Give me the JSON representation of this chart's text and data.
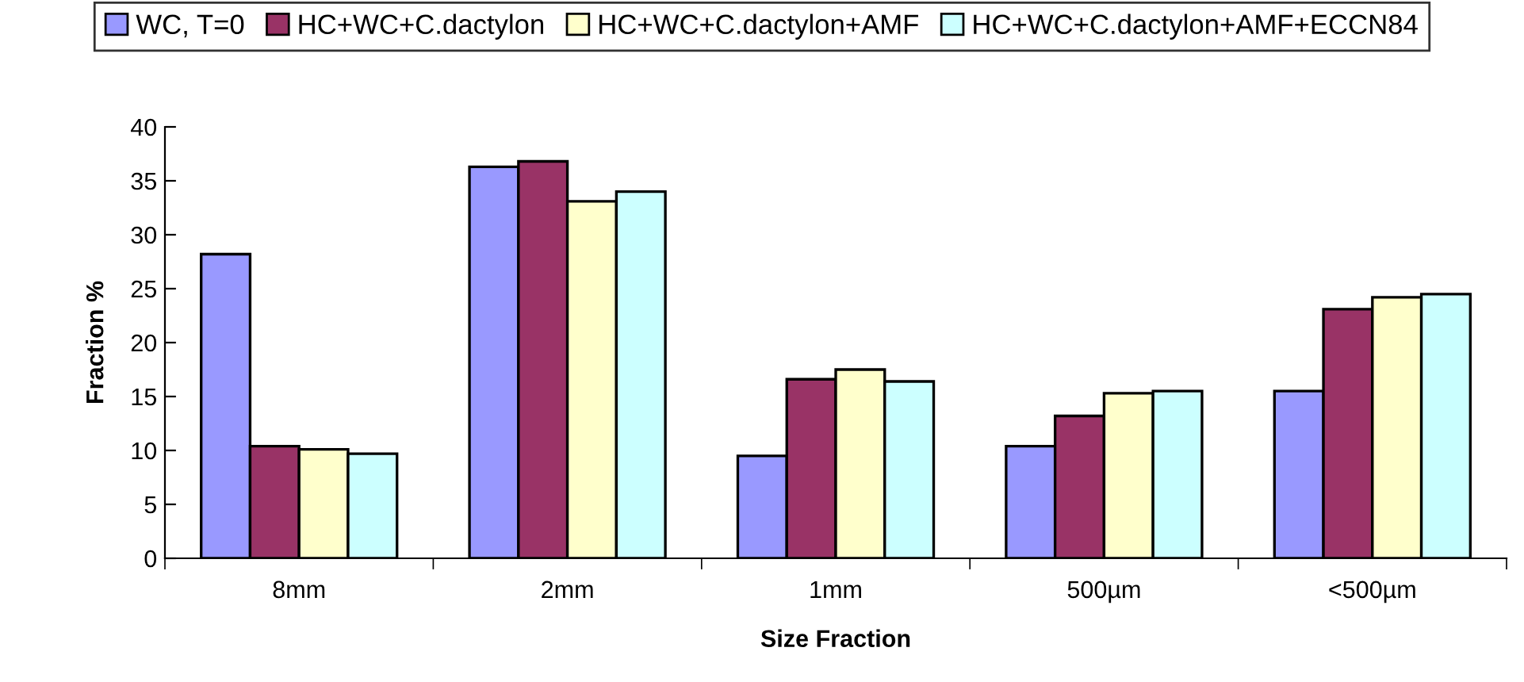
{
  "chart_data": {
    "type": "bar",
    "xlabel": "Size Fraction",
    "ylabel": "Fraction %",
    "categories": [
      "8mm",
      "2mm",
      "1mm",
      "500µm",
      "<500µm"
    ],
    "series": [
      {
        "name": "WC, T=0",
        "color": "#9999ff",
        "values": [
          28.2,
          36.3,
          9.5,
          10.4,
          15.5
        ]
      },
      {
        "name": "HC+WC+C.dactylon",
        "color": "#993366",
        "values": [
          10.4,
          36.8,
          16.6,
          13.2,
          23.1
        ]
      },
      {
        "name": "HC+WC+C.dactylon+AMF",
        "color": "#ffffcc",
        "values": [
          10.1,
          33.1,
          17.5,
          15.3,
          24.2
        ]
      },
      {
        "name": "HC+WC+C.dactylon+AMF+ECCN84",
        "color": "#ccffff",
        "values": [
          9.7,
          34.0,
          16.4,
          15.5,
          24.5
        ]
      }
    ],
    "ylim": [
      0,
      40
    ],
    "yticks": [
      0,
      5,
      10,
      15,
      20,
      25,
      30,
      35,
      40
    ],
    "grid": false,
    "legend": "top"
  }
}
